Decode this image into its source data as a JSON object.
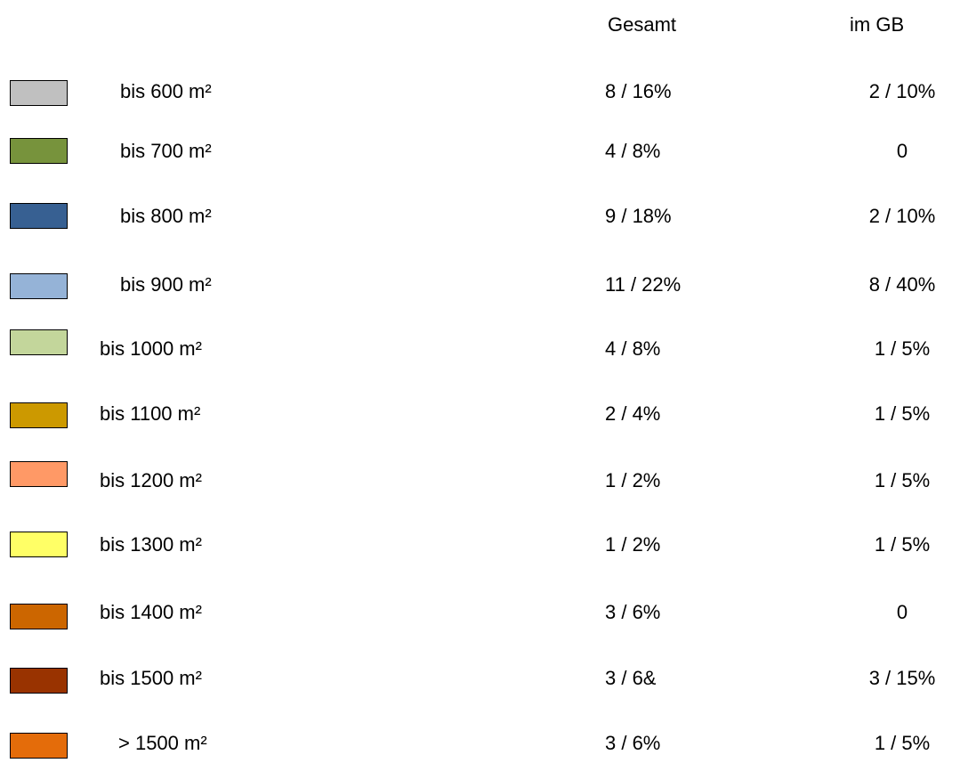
{
  "table": {
    "header": [
      "Gesamt",
      "im GB"
    ],
    "rows": [
      {
        "label": "bis 600 m²",
        "gesamt": "8 / 16%",
        "gb": "2 / 10%",
        "color": "#c0c0c0"
      },
      {
        "label": "bis 700 m²",
        "gesamt": "4 / 8%",
        "gb": "0",
        "color": "#77933c"
      },
      {
        "label": "bis 800 m²",
        "gesamt": "9 / 18%",
        "gb": "2 / 10%",
        "color": "#376092"
      },
      {
        "label": "bis 900 m²",
        "gesamt": "11 / 22%",
        "gb": "8 / 40%",
        "color": "#95b3d7"
      },
      {
        "label": "bis 1000 m²",
        "gesamt": "4 / 8%",
        "gb": "1 / 5%",
        "color": "#c3d69b"
      },
      {
        "label": "bis 1100 m²",
        "gesamt": "2 / 4%",
        "gb": "1 / 5%",
        "color": "#cc9900"
      },
      {
        "label": "bis 1200 m²",
        "gesamt": "1 / 2%",
        "gb": "1 / 5%",
        "color": "#ff9966"
      },
      {
        "label": "bis 1300 m²",
        "gesamt": "1 / 2%",
        "gb": "1 / 5%",
        "color": "#ffff66"
      },
      {
        "label": "bis 1400 m²",
        "gesamt": "3 / 6%",
        "gb": "0",
        "color": "#cc6600"
      },
      {
        "label": "bis 1500 m²",
        "gesamt": "3 / 6&",
        "gb": "3 / 15%",
        "color": "#993300"
      },
      {
        "label": "> 1500 m²",
        "gesamt": "3 / 6%",
        "gb": "1 / 5%",
        "color": "#e46c0a"
      }
    ]
  }
}
